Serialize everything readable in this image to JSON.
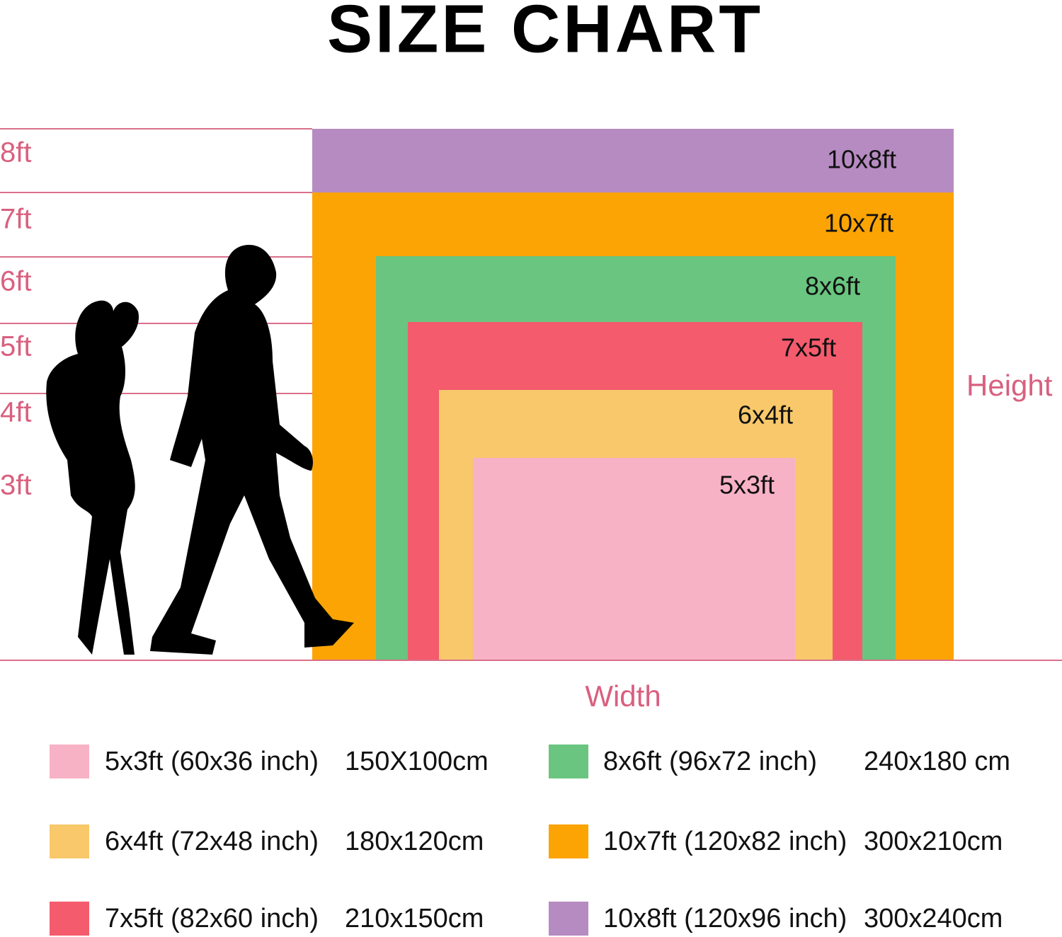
{
  "title": "SIZE CHART",
  "height_marks": [
    "8ft",
    "7ft",
    "6ft",
    "5ft",
    "4ft",
    "3ft"
  ],
  "sizes": [
    {
      "label": "10x8ft",
      "color": "#b68bc1"
    },
    {
      "label": "10x7ft",
      "color": "#fba404"
    },
    {
      "label": "8x6ft",
      "color": "#69c57f"
    },
    {
      "label": "7x5ft",
      "color": "#f45b6c"
    },
    {
      "label": "6x4ft",
      "color": "#f8c86b"
    },
    {
      "label": "5x3ft",
      "color": "#f8b2c6"
    }
  ],
  "axis_labels": {
    "height": "Height",
    "width": "Width"
  },
  "legend": [
    {
      "size": "5x3ft (60x36 inch)",
      "cm": "150X100cm",
      "color": "#f8b2c6"
    },
    {
      "size": "6x4ft (72x48 inch)",
      "cm": "180x120cm",
      "color": "#f8c86b"
    },
    {
      "size": "7x5ft (82x60 inch)",
      "cm": "210x150cm",
      "color": "#f45b6c"
    },
    {
      "size": "8x6ft (96x72 inch)",
      "cm": "240x180 cm",
      "color": "#69c57f"
    },
    {
      "size": "10x7ft (120x82 inch)",
      "cm": "300x210cm",
      "color": "#fba404"
    },
    {
      "size": "10x8ft (120x96 inch)",
      "cm": "300x240cm",
      "color": "#b68bc1"
    }
  ]
}
